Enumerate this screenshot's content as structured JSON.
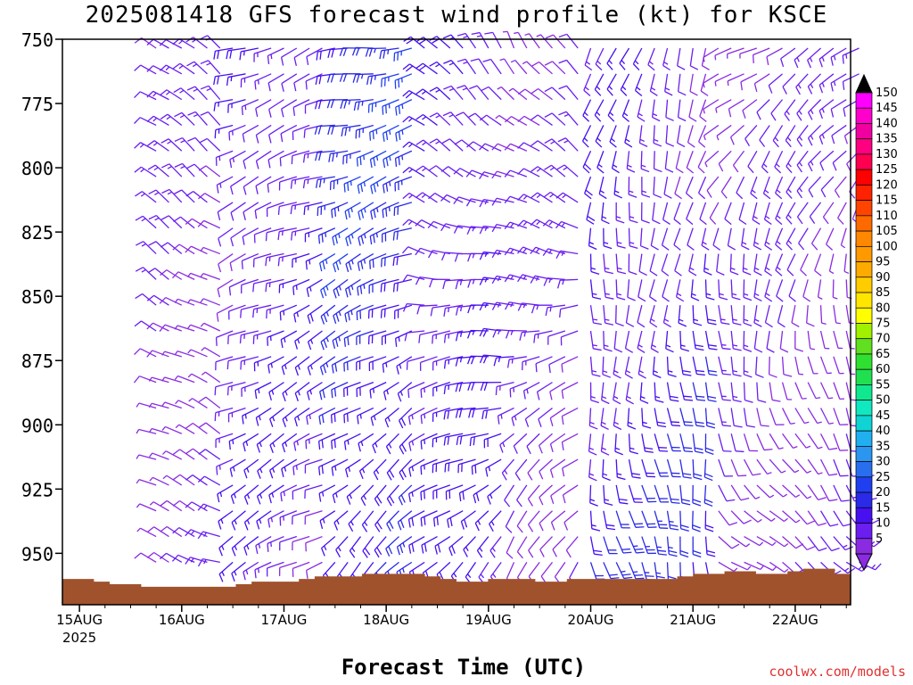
{
  "title": "2025081418 GFS forecast wind profile (kt) for KSCE",
  "xlabel": "Forecast Time (UTC)",
  "credit": "coolwx.com/models",
  "chart_data": {
    "type": "wind-barb-profile",
    "y_axis": {
      "label": "",
      "ticks": [
        750,
        775,
        800,
        825,
        850,
        875,
        900,
        925,
        950
      ],
      "range_hpa": [
        750,
        970
      ],
      "inverted": true
    },
    "x_axis": {
      "ticks": [
        "15AUG",
        "16AUG",
        "17AUG",
        "18AUG",
        "19AUG",
        "20AUG",
        "21AUG",
        "22AUG"
      ],
      "year_label": "2025",
      "start_hour": 18,
      "end_hour": 192,
      "step_hours": 3,
      "range_hours_from_15AUG00Z": [
        -4,
        181
      ]
    },
    "terrain_color": "#a0522d",
    "colorbar": {
      "levels": [
        5,
        10,
        15,
        20,
        25,
        30,
        35,
        40,
        45,
        50,
        55,
        60,
        65,
        70,
        75,
        80,
        85,
        90,
        95,
        100,
        105,
        110,
        115,
        120,
        125,
        130,
        135,
        140,
        145,
        150
      ],
      "colors": [
        "#8a2be2",
        "#6a1ef0",
        "#4610f0",
        "#2a2ae8",
        "#2040f0",
        "#2a6ef0",
        "#2a96f0",
        "#20b0f0",
        "#10d4d4",
        "#10e8c0",
        "#10e890",
        "#20e050",
        "#30e030",
        "#60e020",
        "#a0f000",
        "#ffff00",
        "#ffe600",
        "#ffcc00",
        "#ffaa00",
        "#ff9900",
        "#ff8800",
        "#ff6a00",
        "#ff4400",
        "#ff2200",
        "#ff0000",
        "#ff0050",
        "#ff0080",
        "#f000a0",
        "#ff00cc",
        "#ff00ff"
      ]
    },
    "terrain_top_hpa": [
      960,
      960,
      961,
      962,
      962,
      963,
      963,
      963,
      963,
      963,
      963,
      962,
      961,
      961,
      961,
      960,
      959,
      959,
      959,
      958,
      958,
      958,
      958,
      959,
      960,
      961,
      961,
      960,
      960,
      960,
      961,
      961,
      960,
      960,
      960,
      960,
      960,
      960,
      960,
      959,
      958,
      958,
      957,
      957,
      958,
      958,
      957,
      956,
      956,
      958
    ],
    "grid": {
      "levels": [
        750,
        760,
        770,
        780,
        790,
        800,
        810,
        820,
        830,
        840,
        850,
        860,
        870,
        880,
        890,
        900,
        910,
        920,
        930,
        940,
        950,
        960
      ],
      "description": "direction (deg, from) and speed (kt) per time column; regimes by forecast period",
      "regimes": [
        {
          "from_hour": 18,
          "to_hour": 36,
          "low": {
            "dir": 290,
            "spd": 10
          },
          "high": {
            "dir": 310,
            "spd": 10
          }
        },
        {
          "from_hour": 36,
          "to_hour": 60,
          "low": {
            "dir": 240,
            "spd": 12
          },
          "high": {
            "dir": 250,
            "spd": 15
          }
        },
        {
          "from_hour": 60,
          "to_hour": 80,
          "low": {
            "dir": 225,
            "spd": 20
          },
          "high": {
            "dir": 260,
            "spd": 22
          }
        },
        {
          "from_hour": 80,
          "to_hour": 100,
          "low": {
            "dir": 220,
            "spd": 15
          },
          "high": {
            "dir": 320,
            "spd": 15
          }
        },
        {
          "from_hour": 100,
          "to_hour": 120,
          "low": {
            "dir": 200,
            "spd": 12
          },
          "high": {
            "dir": 330,
            "spd": 10
          }
        },
        {
          "from_hour": 120,
          "to_hour": 150,
          "low": {
            "dir": 165,
            "spd": 20
          },
          "high": {
            "dir": 200,
            "spd": 12
          }
        },
        {
          "from_hour": 150,
          "to_hour": 192,
          "low": {
            "dir": 120,
            "spd": 10
          },
          "high": {
            "dir": 240,
            "spd": 10
          }
        }
      ]
    }
  }
}
